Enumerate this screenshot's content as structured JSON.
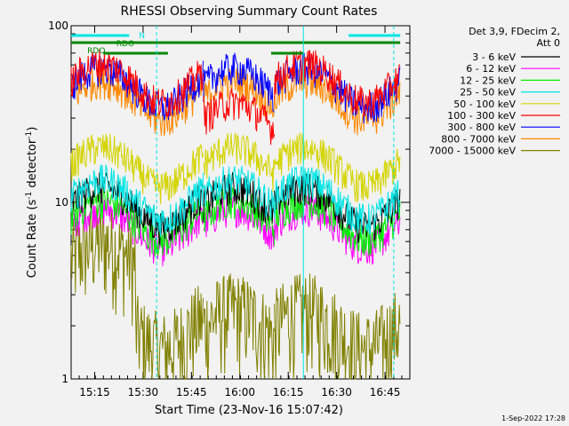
{
  "page": {
    "footer_timestamp": "1-Sep-2022 17:28"
  },
  "chart_data": {
    "type": "line",
    "title": "RHESSI Observing Summary Count Rates",
    "xlabel": "Start Time (23-Nov-16 15:07:42)",
    "ylabel_main": "Count Rate (s",
    "ylabel_sup1": "-1",
    "ylabel_mid": " detector",
    "ylabel_sup2": "-1",
    "ylabel_end": ")",
    "y_scale": "log",
    "ylim": [
      1,
      100
    ],
    "xlim_minutes": [
      0,
      105
    ],
    "x_ticks": [
      {
        "label": "15:15",
        "t": 7.3
      },
      {
        "label": "15:30",
        "t": 22.3
      },
      {
        "label": "15:45",
        "t": 37.3
      },
      {
        "label": "16:00",
        "t": 52.3
      },
      {
        "label": "16:15",
        "t": 67.3
      },
      {
        "label": "16:30",
        "t": 82.3
      },
      {
        "label": "16:45",
        "t": 97.3
      }
    ],
    "y_ticks": [
      {
        "label": "1",
        "v": 1
      },
      {
        "label": "10",
        "v": 10
      },
      {
        "label": "100",
        "v": 100
      }
    ],
    "legend": {
      "header1": "Det 3,9, FDecim 2,",
      "header2": "Att 0",
      "placement": "right"
    },
    "series": [
      {
        "name": "3 - 6 keV",
        "color": "#000000",
        "approx_level": 9.5
      },
      {
        "name": "6 - 12 keV",
        "color": "#ff00ff",
        "approx_level": 7.2
      },
      {
        "name": "12 - 25 keV",
        "color": "#00ee00",
        "approx_level": 8.0
      },
      {
        "name": "25 - 50 keV",
        "color": "#00e5e5",
        "approx_level": 10.5
      },
      {
        "name": "50 - 100 keV",
        "color": "#d4d400",
        "approx_level": 16.0
      },
      {
        "name": "100 - 300 keV",
        "color": "#ff0000",
        "approx_level": 48.0
      },
      {
        "name": "300 - 800 keV",
        "color": "#0000ff",
        "approx_level": 45.0
      },
      {
        "name": "800 - 7000 keV",
        "color": "#ff8800",
        "approx_level": 38.0
      },
      {
        "name": "7000 - 15000 keV",
        "color": "#808000",
        "approx_level": 2.0
      }
    ],
    "flag_bars": {
      "saa_label": "SAA",
      "night_label": "N",
      "decimation_label": "RDO"
    },
    "vertical_markers_minutes": [
      26.5,
      72.0,
      100.0
    ]
  }
}
